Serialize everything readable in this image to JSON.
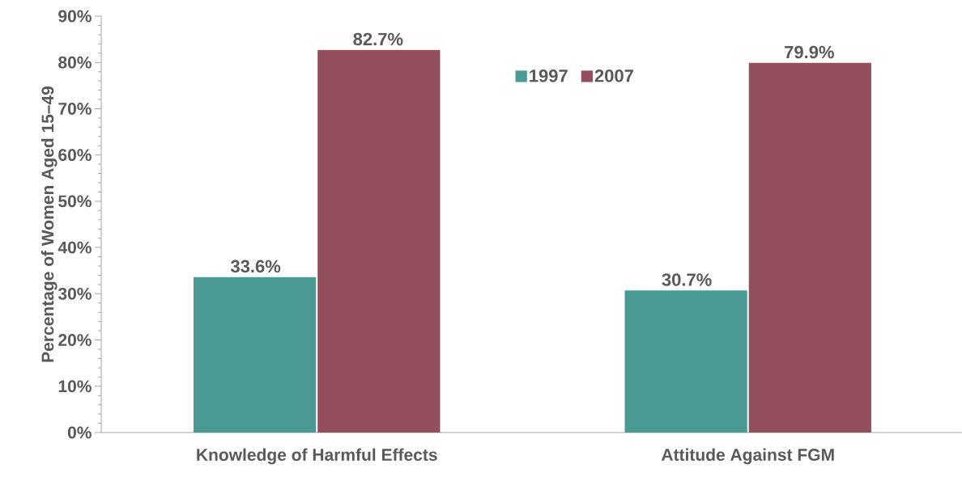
{
  "chart_data": {
    "type": "bar",
    "ylabel": "Percentage of Women Aged 15–49",
    "categories": [
      "Knowledge of Harmful Effects",
      "Attitude Against FGM"
    ],
    "series": [
      {
        "name": "1997",
        "color": "#4a9a94",
        "values": [
          33.6,
          30.7
        ],
        "value_labels": [
          "33.6%",
          "30.7%"
        ]
      },
      {
        "name": "2007",
        "color": "#93505c",
        "values": [
          82.7,
          79.9
        ],
        "value_labels": [
          "82.7%",
          "79.9%"
        ]
      }
    ],
    "ylim": [
      0,
      90
    ],
    "yticks": [
      {
        "value": 0,
        "label": "0%"
      },
      {
        "value": 10,
        "label": "10%"
      },
      {
        "value": 20,
        "label": "20%"
      },
      {
        "value": 30,
        "label": "30%"
      },
      {
        "value": 40,
        "label": "40%"
      },
      {
        "value": 50,
        "label": "50%"
      },
      {
        "value": 60,
        "label": "60%"
      },
      {
        "value": 70,
        "label": "70%"
      },
      {
        "value": 80,
        "label": "80%"
      },
      {
        "value": 90,
        "label": "90%"
      }
    ],
    "grid": false,
    "legend": "top"
  }
}
